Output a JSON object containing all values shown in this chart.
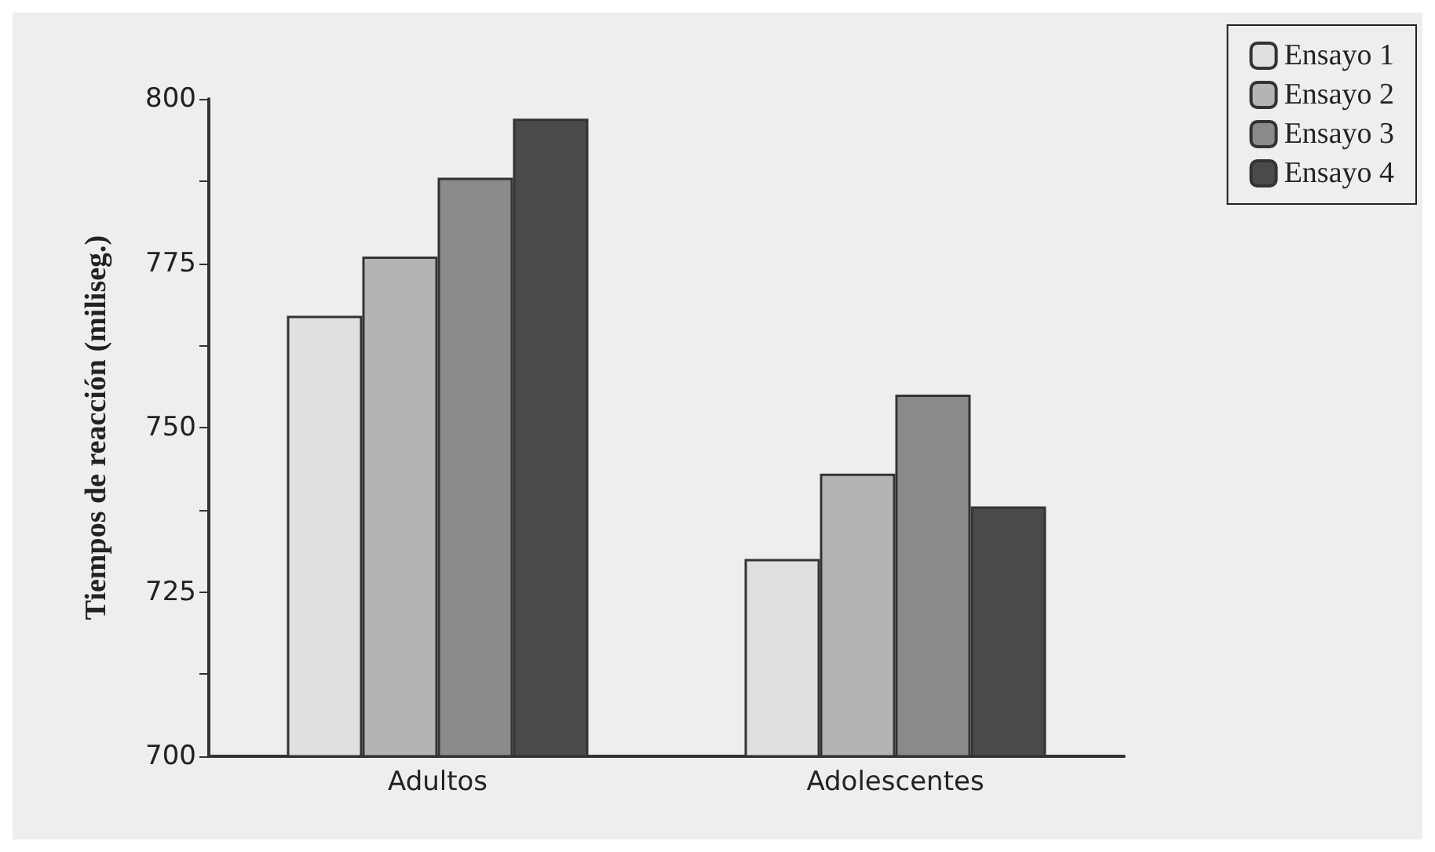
{
  "chart_data": {
    "type": "bar",
    "ylabel": "Tiempos de reacción (miliseg.)",
    "categories": [
      "Adultos",
      "Adolescentes"
    ],
    "series": [
      {
        "name": "Ensayo 1",
        "color": "#e0e0e0",
        "values": [
          767,
          730
        ]
      },
      {
        "name": "Ensayo 2",
        "color": "#b4b4b4",
        "values": [
          776,
          743
        ]
      },
      {
        "name": "Ensayo 3",
        "color": "#8a8a8a",
        "values": [
          788,
          755
        ]
      },
      {
        "name": "Ensayo 4",
        "color": "#4a4a4a",
        "values": [
          797,
          738
        ]
      }
    ],
    "ylim": [
      700,
      800
    ],
    "yticks": [
      700,
      {
        "value": 712.5,
        "label": null
      },
      725,
      {
        "value": 737.5,
        "label": null
      },
      750,
      {
        "value": 762.5,
        "label": null
      },
      775,
      {
        "value": 787.5,
        "label": null
      },
      800
    ],
    "grid": false,
    "legend": "top right"
  }
}
